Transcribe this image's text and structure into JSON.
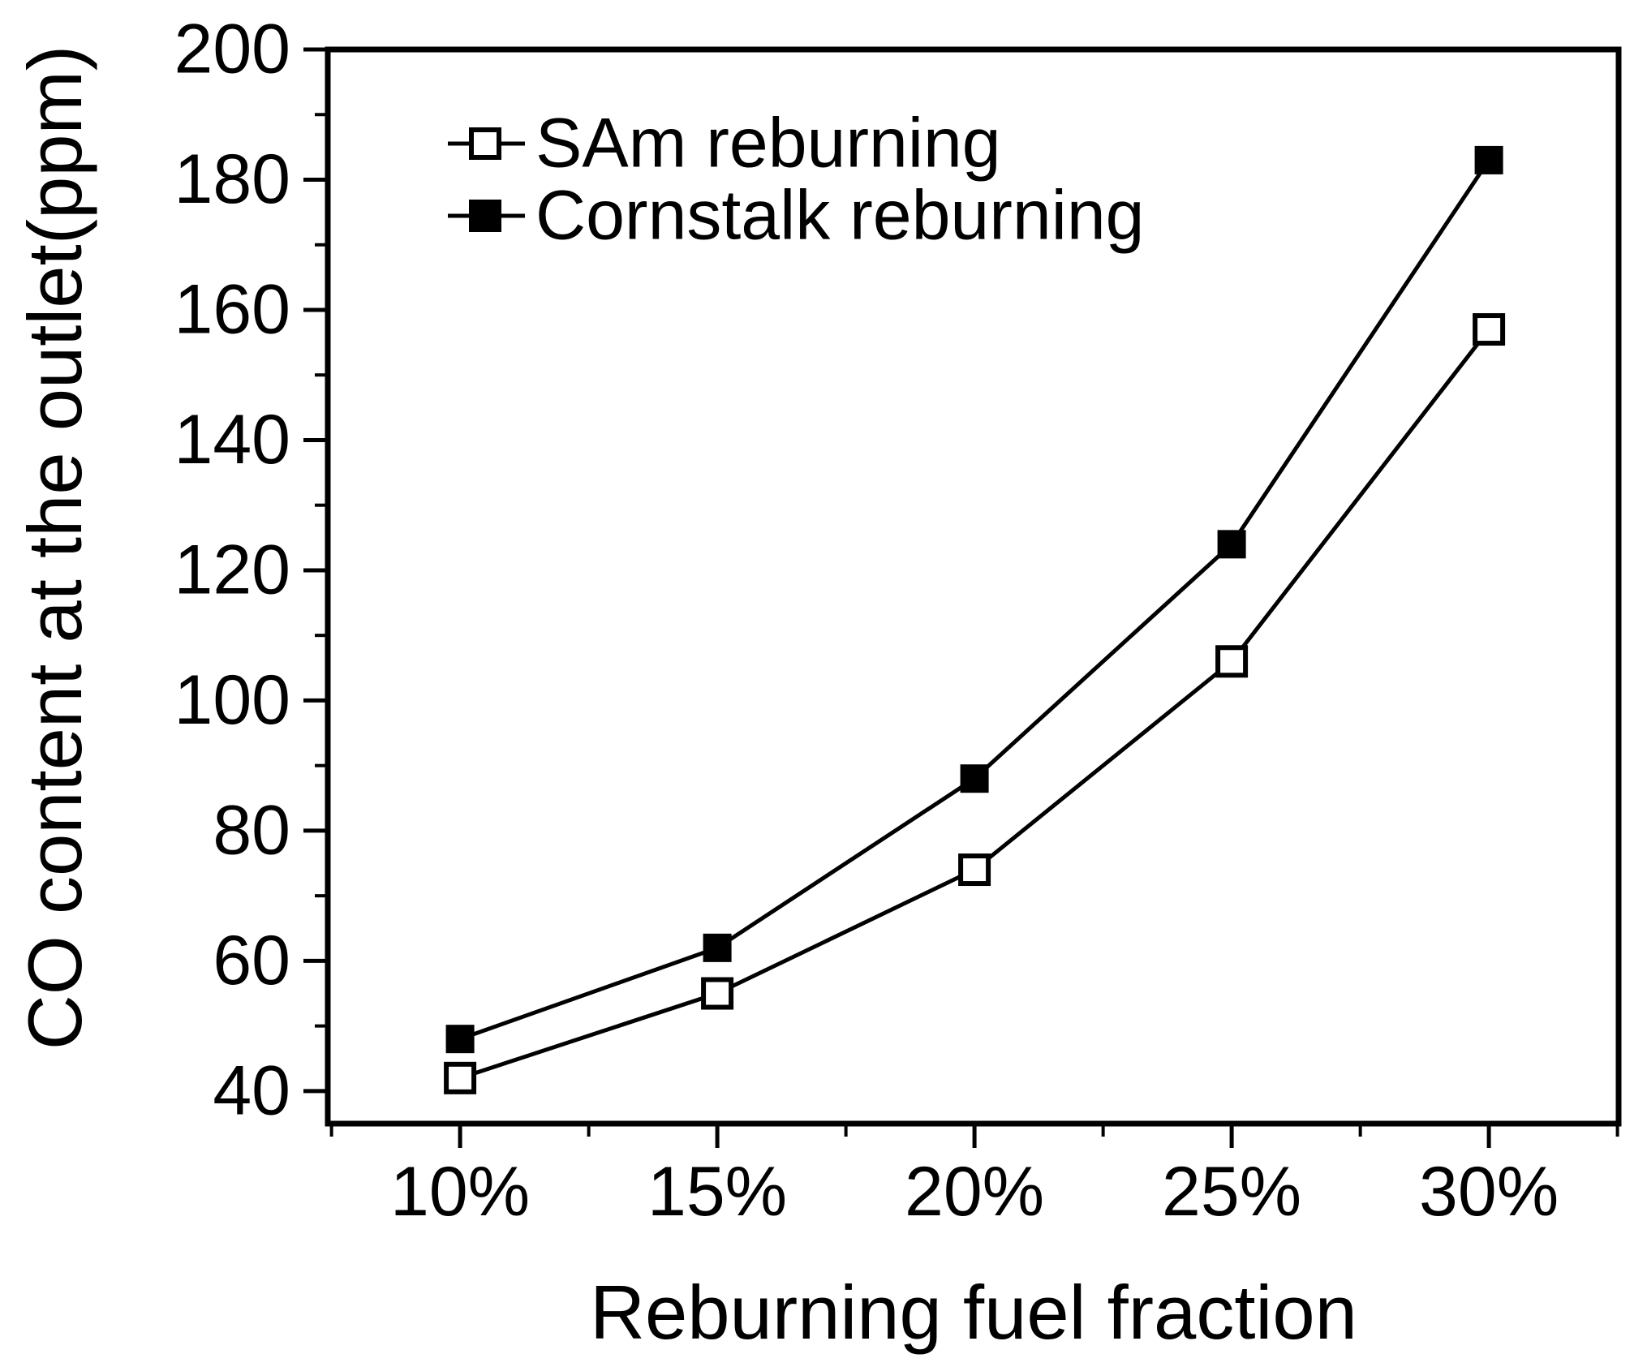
{
  "figure": {
    "background": "#ffffff",
    "foreground": "#000000"
  },
  "chart_data": {
    "type": "line",
    "title": "",
    "xlabel": "Reburning fuel fraction",
    "ylabel": "CO content at the outlet(ppm)",
    "categories": [
      "10%",
      "15%",
      "20%",
      "25%",
      "30%"
    ],
    "series": [
      {
        "name": "SAm reburning",
        "marker": "open-square",
        "color": "#000000",
        "values": [
          42,
          55,
          74,
          106,
          157
        ]
      },
      {
        "name": "Cornstalk reburning",
        "marker": "filled-square",
        "color": "#000000",
        "values": [
          48,
          62,
          88,
          124,
          183
        ]
      }
    ],
    "ylim": [
      35,
      200
    ],
    "y_major_ticks": [
      40,
      60,
      80,
      100,
      120,
      140,
      160,
      180,
      200
    ],
    "y_minor_ticks": [
      50,
      70,
      90,
      110,
      130,
      150,
      170,
      190
    ],
    "grid": false,
    "legend_position": "top-left-inside"
  }
}
